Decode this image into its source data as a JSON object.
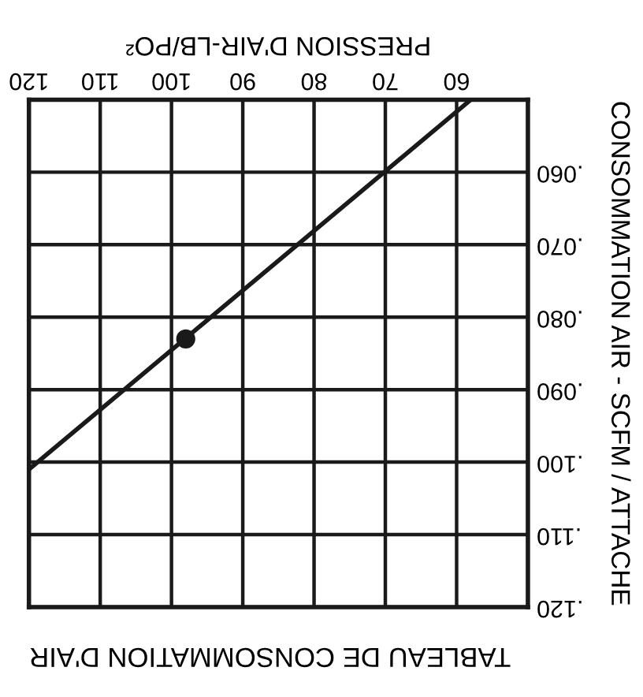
{
  "chart_data": {
    "type": "line",
    "title": "TABLEAU DE CONSOMMATION D'AIR",
    "xlabel": "PRESSION D'AIR-LB/PO²",
    "ylabel": "CONSOMMATION AIR - SCFM / ATTACHE",
    "xlim": [
      120,
      50
    ],
    "xticks": [
      60,
      70,
      80,
      90,
      100,
      110,
      120
    ],
    "ylim": [
      0.12,
      0.05
    ],
    "yticks": [
      {
        "value": 0.06,
        "label": ".060"
      },
      {
        "value": 0.07,
        "label": ".070"
      },
      {
        "value": 0.08,
        "label": ".080"
      },
      {
        "value": 0.09,
        "label": ".090"
      },
      {
        "value": 0.1,
        "label": ".100"
      },
      {
        "value": 0.11,
        "label": ".110"
      },
      {
        "value": 0.12,
        "label": ".120"
      }
    ],
    "grid": true,
    "series": [
      {
        "color": "#1a1a1a",
        "x": [
          58,
          120
        ],
        "values": [
          0.05,
          0.101
        ]
      },
      {
        "type": "scatter",
        "color": "#1a1a1a",
        "marker": "circle",
        "x": [
          98
        ],
        "values": [
          0.083
        ]
      }
    ]
  }
}
